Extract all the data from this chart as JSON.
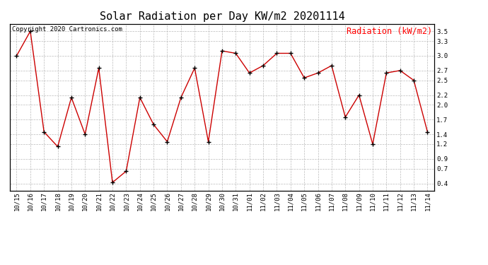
{
  "title": "Solar Radiation per Day KW/m2 20201114",
  "copyright": "Copyright 2020 Cartronics.com",
  "legend_label": "Radiation (kW/m2)",
  "labels": [
    "10/15",
    "10/16",
    "10/17",
    "10/18",
    "10/19",
    "10/20",
    "10/21",
    "10/22",
    "10/23",
    "10/24",
    "10/25",
    "10/26",
    "10/27",
    "10/28",
    "10/29",
    "10/30",
    "10/31",
    "11/01",
    "11/02",
    "11/03",
    "11/04",
    "11/05",
    "11/06",
    "11/07",
    "11/08",
    "11/09",
    "11/10",
    "11/11",
    "11/12",
    "11/13",
    "11/14"
  ],
  "values": [
    3.0,
    3.5,
    1.45,
    1.15,
    2.15,
    1.4,
    2.75,
    0.42,
    0.65,
    2.15,
    1.6,
    1.25,
    2.15,
    2.75,
    1.25,
    3.1,
    3.05,
    2.65,
    2.8,
    3.05,
    3.05,
    2.55,
    2.65,
    2.8,
    1.75,
    2.2,
    1.2,
    2.65,
    2.7,
    2.5,
    1.45
  ],
  "line_color": "#cc0000",
  "marker_color": "#000000",
  "bg_color": "#ffffff",
  "grid_color": "#bbbbbb",
  "title_fontsize": 11,
  "copyright_fontsize": 6.5,
  "legend_fontsize": 8.5,
  "tick_fontsize": 6.5,
  "ylim": [
    0.25,
    3.65
  ],
  "yticks": [
    0.4,
    0.7,
    0.9,
    1.2,
    1.4,
    1.7,
    2.0,
    2.2,
    2.5,
    2.7,
    3.0,
    3.3,
    3.5
  ]
}
